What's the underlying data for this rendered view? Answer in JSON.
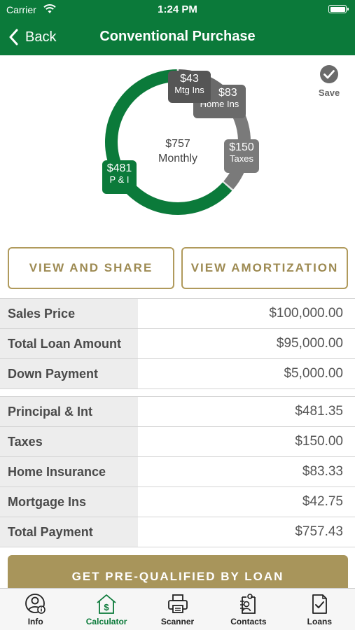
{
  "status_bar": {
    "carrier": "Carrier",
    "time": "1:24 PM"
  },
  "nav": {
    "back_label": "Back",
    "title": "Conventional Purchase"
  },
  "save": {
    "label": "Save"
  },
  "chart_data": {
    "type": "pie",
    "center_amount": "$757",
    "center_label": "Monthly",
    "slices": [
      {
        "label": "P & I",
        "amount_label": "$481",
        "value": 481.35,
        "color": "#0b7a3a"
      },
      {
        "label": "Taxes",
        "amount_label": "$150",
        "value": 150.0,
        "color": "#7a7a7a"
      },
      {
        "label": "Home Ins",
        "amount_label": "$83",
        "value": 83.33,
        "color": "#6a6a6a"
      },
      {
        "label": "Mtg Ins",
        "amount_label": "$43",
        "value": 42.75,
        "color": "#555555"
      }
    ]
  },
  "actions": {
    "view_share": "VIEW AND SHARE",
    "view_amortization": "VIEW AMORTIZATION"
  },
  "loan_summary": [
    {
      "label": "Sales Price",
      "value": "$100,000.00"
    },
    {
      "label": "Total Loan Amount",
      "value": "$95,000.00"
    },
    {
      "label": "Down Payment",
      "value": "$5,000.00"
    }
  ],
  "payment_breakdown": [
    {
      "label": "Principal & Int",
      "value": "$481.35"
    },
    {
      "label": "Taxes",
      "value": "$150.00"
    },
    {
      "label": "Home Insurance",
      "value": "$83.33"
    },
    {
      "label": "Mortgage Ins",
      "value": "$42.75"
    },
    {
      "label": "Total Payment",
      "value": "$757.43"
    }
  ],
  "prequal": {
    "label": "GET PRE-QUALIFIED BY LOAN"
  },
  "tabs": [
    {
      "label": "Info",
      "icon": "person-info-icon"
    },
    {
      "label": "Calculator",
      "icon": "calculator-house-icon",
      "active": true
    },
    {
      "label": "Scanner",
      "icon": "printer-icon"
    },
    {
      "label": "Contacts",
      "icon": "contacts-icon"
    },
    {
      "label": "Loans",
      "icon": "document-check-icon"
    }
  ]
}
